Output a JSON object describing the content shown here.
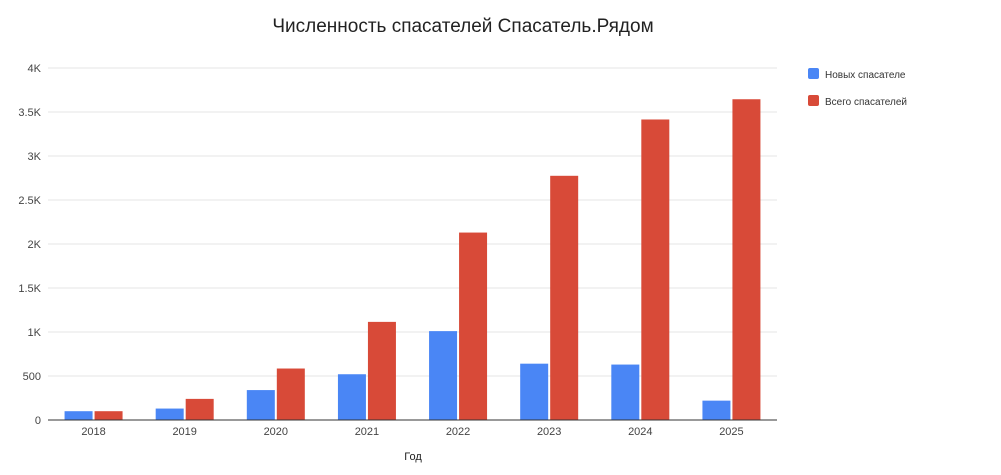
{
  "chart_data": {
    "type": "bar",
    "title": "Численность спасателей Спасатель.Рядом",
    "xlabel": "Год",
    "ylabel": "",
    "categories": [
      "2018",
      "2019",
      "2020",
      "2021",
      "2022",
      "2023",
      "2024",
      "2025"
    ],
    "series": [
      {
        "name": "Новых спасателей",
        "legend_label": "Новых спасателе",
        "color": "#4a86f5",
        "values": [
          100,
          130,
          340,
          520,
          1010,
          640,
          630,
          220
        ]
      },
      {
        "name": "Всего спасателей",
        "legend_label": "Всего спасателей",
        "color": "#d84a38",
        "values": [
          100,
          240,
          585,
          1115,
          2130,
          2775,
          3415,
          3645
        ]
      }
    ],
    "ylim": [
      0,
      4000
    ],
    "yticks": [
      0,
      500,
      1000,
      1500,
      2000,
      2500,
      3000,
      3500,
      4000
    ],
    "ytick_labels": [
      "0",
      "500",
      "1K",
      "1.5K",
      "2K",
      "2.5K",
      "3K",
      "3.5K",
      "4K"
    ],
    "grid": true,
    "legend_position": "right"
  }
}
